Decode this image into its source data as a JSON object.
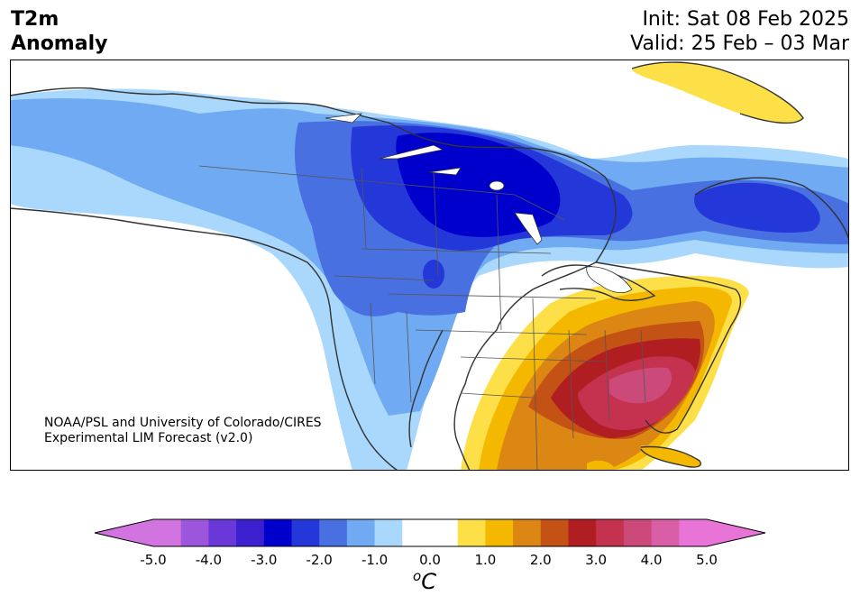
{
  "header": {
    "title_line1": "T2m",
    "title_line2": "Anomaly",
    "init": "Init: Sat 08 Feb 2025",
    "valid": "Valid: 25 Feb – 03 Mar"
  },
  "credit": {
    "line1": "NOAA/PSL and University of Colorado/CIRES",
    "line2": "Experimental LIM Forecast (v2.0)"
  },
  "colorbar": {
    "ticks": [
      "-5.0",
      "-4.0",
      "-3.0",
      "-2.0",
      "-1.0",
      "0.0",
      "1.0",
      "2.0",
      "3.0",
      "4.0",
      "5.0"
    ],
    "unit_base": "C",
    "unit_sup": "o",
    "levels_min": -5.0,
    "levels_max": 5.0,
    "step": 0.5,
    "colors": [
      "#d274e0",
      "#9c56dc",
      "#6a38d8",
      "#3c1fcf",
      "#0000cd",
      "#2438d9",
      "#4870e0",
      "#70aaf2",
      "#aad8fc",
      "#ffffff",
      "#ffffff",
      "#fde048",
      "#f4b800",
      "#dc8614",
      "#c45214",
      "#b01e22",
      "#c43250",
      "#cc4a7a",
      "#d85ea6",
      "#e874d8"
    ],
    "extend_low_color": "#d274e0",
    "extend_high_color": "#e874d8"
  },
  "map": {
    "region": "North America",
    "anomaly_colors": {
      "lt_neg3": "#0000cd",
      "neg2_5": "#2438d9",
      "neg2": "#4870e0",
      "neg1_5": "#70aaf2",
      "neg1": "#aad8fc",
      "pos1": "#fde048",
      "pos1_5": "#f4b800",
      "pos2": "#dc8614",
      "pos2_5": "#c45214",
      "pos3": "#b01e22",
      "pos3_5": "#c43250",
      "pos4": "#d85ea6"
    }
  }
}
